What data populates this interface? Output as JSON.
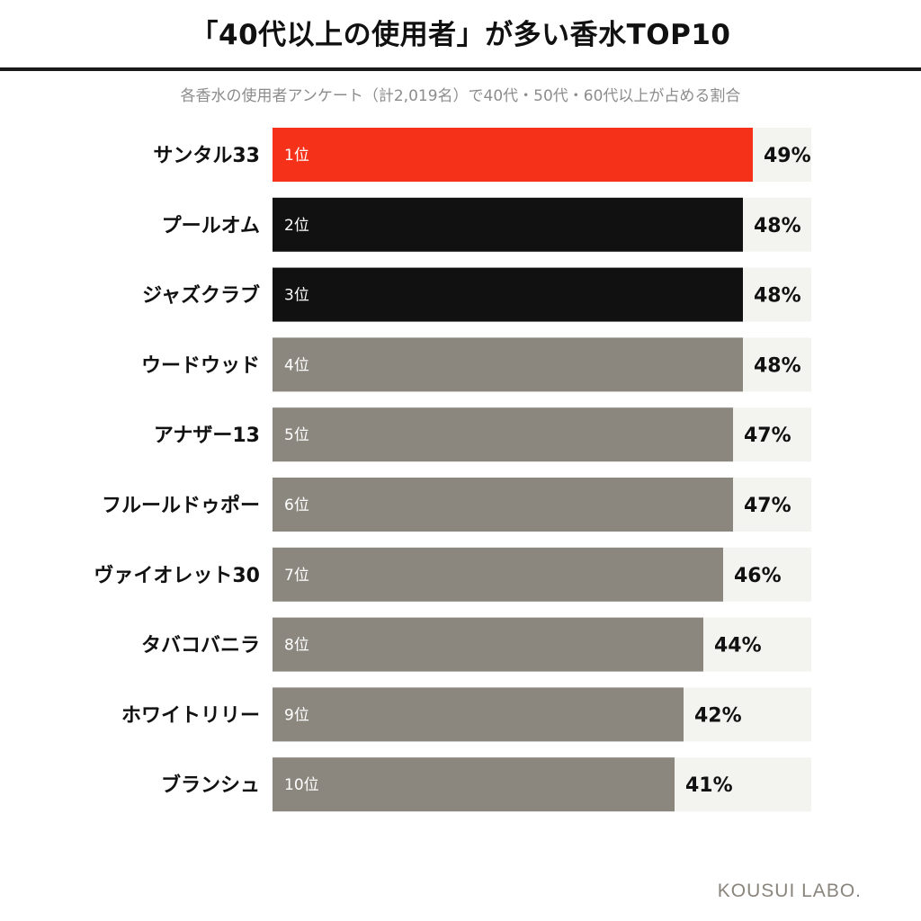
{
  "header": {
    "title": "「40代以上の使用者」が多い香水TOP10",
    "subtitle": "各香水の使用者アンケート（計2,019名）で40代・50代・60代以上が占める割合"
  },
  "footer": {
    "brand": "KOUSUI LABO."
  },
  "colors": {
    "first_place": "#f53219",
    "top3": "#111111",
    "others": "#8b877e",
    "track": "#f3f3ef",
    "rank_label": "#ffffff"
  },
  "chart_data": {
    "type": "bar",
    "orientation": "horizontal",
    "title": "「40代以上の使用者」が多い香水TOP10",
    "subtitle": "各香水の使用者アンケート（計2,019名）で40代・50代・60代以上が占める割合",
    "categories": [
      "サンタル33",
      "プールオム",
      "ジャズクラブ",
      "ウードウッド",
      "アナザー13",
      "フルールドゥポー",
      "ヴァイオレット30",
      "タバコバニラ",
      "ホワイトリリー",
      "ブランシュ"
    ],
    "ranks": [
      "1位",
      "2位",
      "3位",
      "4位",
      "5位",
      "6位",
      "7位",
      "8位",
      "9位",
      "10位"
    ],
    "values": [
      49,
      48,
      48,
      48,
      47,
      47,
      46,
      44,
      42,
      41
    ],
    "value_labels": [
      "49%",
      "48%",
      "48%",
      "48%",
      "47%",
      "47%",
      "46%",
      "44%",
      "42%",
      "41%"
    ],
    "unit": "%",
    "xlim": [
      0,
      55
    ],
    "grid": false,
    "legend": "none"
  }
}
